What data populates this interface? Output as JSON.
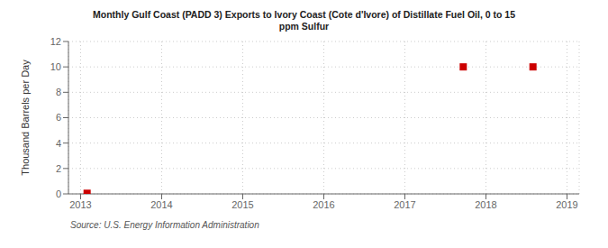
{
  "chart_data": {
    "type": "scatter",
    "title": "Monthly Gulf Coast (PADD 3) Exports to Ivory Coast (Cote d'Ivore) of Distillate Fuel Oil, 0 to 15\nppm Sulfur",
    "y_label": "Thousand Barrels per Day",
    "annotations": [
      "Source: U.S. Energy Information Administration"
    ],
    "x": [
      2013.08,
      2017.72,
      2018.58
    ],
    "values": [
      0.05,
      10.0,
      10.0
    ],
    "color": "#cc0000",
    "marker": "square",
    "xlim": [
      2012.85,
      2019.15
    ],
    "ylim": [
      0,
      12
    ],
    "xticks": [
      2013,
      2014,
      2015,
      2016,
      2017,
      2018,
      2019
    ],
    "yticks": [
      0,
      2,
      4,
      6,
      8,
      10,
      12
    ],
    "grid": true
  }
}
